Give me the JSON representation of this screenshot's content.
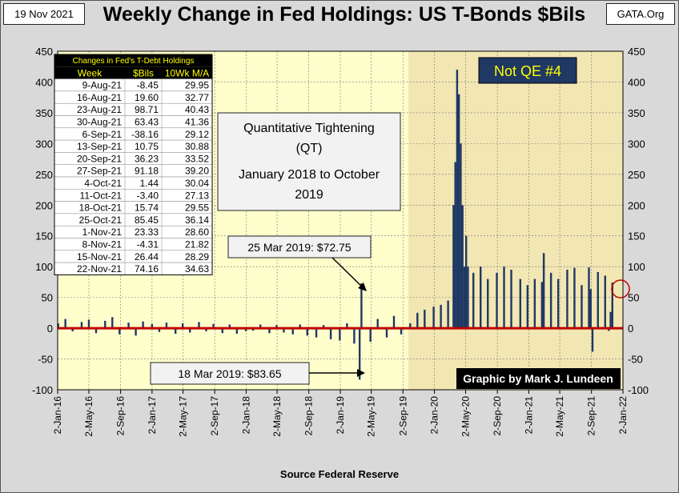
{
  "header": {
    "date": "19 Nov 2021",
    "title": "Weekly Change in Fed Holdings: US T-Bonds $Bils",
    "site": "GATA.Org"
  },
  "footer": {
    "source": "Source Federal Reserve"
  },
  "colors": {
    "bar": "#1f3864",
    "zero_line": "#c00000",
    "plot_bg": "#ffffcc",
    "shaded_bg": "#f2e6b3",
    "table_header_bg": "#000000",
    "table_header_fg": "#ffff00",
    "qe_box_bg": "#1f3864",
    "qe_box_fg": "#ffff00"
  },
  "table": {
    "title": "Changes in Fed's T-Debt Holdings",
    "columns": [
      "Week",
      "$Bils",
      "10Wk M/A"
    ],
    "rows": [
      [
        "9-Aug-21",
        "-8.45",
        "29.95"
      ],
      [
        "16-Aug-21",
        "19.60",
        "32.77"
      ],
      [
        "23-Aug-21",
        "98.71",
        "40.43"
      ],
      [
        "30-Aug-21",
        "63.43",
        "41.36"
      ],
      [
        "6-Sep-21",
        "-38.16",
        "29.12"
      ],
      [
        "13-Sep-21",
        "10.75",
        "30.88"
      ],
      [
        "20-Sep-21",
        "36.23",
        "33.52"
      ],
      [
        "27-Sep-21",
        "91.18",
        "39.20"
      ],
      [
        "4-Oct-21",
        "1.44",
        "30.04"
      ],
      [
        "11-Oct-21",
        "-3.40",
        "27.13"
      ],
      [
        "18-Oct-21",
        "15.74",
        "29.55"
      ],
      [
        "25-Oct-21",
        "85.45",
        "36.14"
      ],
      [
        "1-Nov-21",
        "23.33",
        "28.60"
      ],
      [
        "8-Nov-21",
        "-4.31",
        "21.82"
      ],
      [
        "15-Nov-21",
        "26.44",
        "28.29"
      ],
      [
        "22-Nov-21",
        "74.16",
        "34.63"
      ]
    ]
  },
  "annotations": {
    "qt_lines": [
      "Quantitative Tightening",
      "(QT)",
      "January 2018 to October",
      "2019"
    ],
    "mar25": "25 Mar 2019: $72.75",
    "mar18": "18 Mar 2019: $83.65",
    "not_qe": "Not QE #4",
    "credit": "Graphic by Mark J. Lundeen"
  },
  "chart_data": {
    "type": "bar",
    "title": "Weekly Change in Fed Holdings: US T-Bonds $Bils",
    "xlabel": "",
    "ylabel": "",
    "ylim": [
      -100,
      450
    ],
    "yticks": [
      -100,
      -50,
      0,
      50,
      100,
      150,
      200,
      250,
      300,
      350,
      400,
      450
    ],
    "x_ticks": [
      "2-Jan-16",
      "2-May-16",
      "2-Sep-16",
      "2-Jan-17",
      "2-May-17",
      "2-Sep-17",
      "2-Jan-18",
      "2-May-18",
      "2-Sep-18",
      "2-Jan-19",
      "2-May-19",
      "2-Sep-19",
      "2-Jan-20",
      "2-May-20",
      "2-Sep-20",
      "2-Jan-21",
      "2-May-21",
      "2-Sep-21",
      "2-Jan-22"
    ],
    "x_range": [
      "2016-01-02",
      "2022-01-02"
    ],
    "shaded_region_start": "2019-09-23",
    "grid": true,
    "series": [
      {
        "x": [
          "2016-01-04",
          "2016-02-01",
          "2016-02-29",
          "2016-04-04",
          "2016-05-02",
          "2016-05-30",
          "2016-07-04",
          "2016-08-01",
          "2016-08-29",
          "2016-10-03",
          "2016-10-31",
          "2016-11-28",
          "2017-01-02",
          "2017-01-30",
          "2017-02-27",
          "2017-04-03",
          "2017-05-01",
          "2017-05-29",
          "2017-07-03",
          "2017-07-31",
          "2017-08-28",
          "2017-10-02",
          "2017-10-30",
          "2017-11-27",
          "2018-01-01",
          "2018-01-29",
          "2018-02-26",
          "2018-04-02",
          "2018-04-30",
          "2018-05-28",
          "2018-07-02",
          "2018-07-30",
          "2018-08-27",
          "2018-10-01",
          "2018-10-29",
          "2018-11-26",
          "2018-12-31",
          "2019-01-28",
          "2019-02-25",
          "2019-03-18",
          "2019-03-25",
          "2019-04-29",
          "2019-05-27",
          "2019-07-01",
          "2019-07-29",
          "2019-08-26",
          "2019-09-30",
          "2019-10-28",
          "2019-11-25",
          "2019-12-30",
          "2020-01-27",
          "2020-02-24",
          "2020-03-16",
          "2020-03-23",
          "2020-03-30",
          "2020-04-06",
          "2020-04-13",
          "2020-04-20",
          "2020-04-27",
          "2020-05-04",
          "2020-05-11",
          "2020-06-01",
          "2020-06-29",
          "2020-07-27",
          "2020-08-31",
          "2020-09-28",
          "2020-10-26",
          "2020-11-30",
          "2020-12-28",
          "2021-01-25",
          "2021-02-22",
          "2021-03-01",
          "2021-03-29",
          "2021-04-26",
          "2021-05-31",
          "2021-06-28",
          "2021-07-26",
          "2021-08-23",
          "2021-08-30",
          "2021-09-06",
          "2021-09-27",
          "2021-10-04",
          "2021-10-25",
          "2021-11-08",
          "2021-11-15",
          "2021-11-22"
        ],
        "values": [
          8,
          15,
          -5,
          10,
          14,
          -8,
          12,
          18,
          -10,
          9,
          -12,
          11,
          7,
          -6,
          9,
          -9,
          8,
          -7,
          10,
          -5,
          7,
          -8,
          6,
          -9,
          -5,
          -4,
          6,
          -8,
          5,
          -7,
          -10,
          6,
          -12,
          -15,
          5,
          -18,
          -20,
          8,
          -25,
          -83.65,
          72.75,
          -22,
          15,
          -15,
          20,
          -10,
          8,
          25,
          30,
          35,
          38,
          45,
          200,
          270,
          420,
          380,
          300,
          200,
          100,
          150,
          100,
          90,
          100,
          80,
          90,
          100,
          95,
          80,
          70,
          80,
          75,
          122,
          90,
          80,
          95,
          98,
          70,
          98.71,
          63.43,
          -38.16,
          91.18,
          1.44,
          85.45,
          -4.31,
          26.44,
          74.16
        ]
      }
    ]
  }
}
